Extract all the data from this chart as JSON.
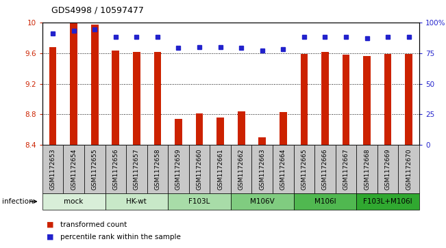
{
  "title": "GDS4998 / 10597477",
  "samples": [
    "GSM1172653",
    "GSM1172654",
    "GSM1172655",
    "GSM1172656",
    "GSM1172657",
    "GSM1172658",
    "GSM1172659",
    "GSM1172660",
    "GSM1172661",
    "GSM1172662",
    "GSM1172663",
    "GSM1172664",
    "GSM1172665",
    "GSM1172666",
    "GSM1172667",
    "GSM1172668",
    "GSM1172669",
    "GSM1172670"
  ],
  "bar_values": [
    9.68,
    10.0,
    9.97,
    9.63,
    9.61,
    9.61,
    8.74,
    8.81,
    8.76,
    8.84,
    8.5,
    8.83,
    9.59,
    9.61,
    9.58,
    9.56,
    9.59,
    9.59
  ],
  "percentile_values": [
    91,
    93,
    94,
    88,
    88,
    88,
    79,
    80,
    80,
    79,
    77,
    78,
    88,
    88,
    88,
    87,
    88,
    88
  ],
  "ylim_left": [
    8.4,
    10.0
  ],
  "ylim_right": [
    0,
    100
  ],
  "yticks_left": [
    8.4,
    8.8,
    9.2,
    9.6,
    10.0
  ],
  "yticks_right": [
    0,
    25,
    50,
    75,
    100
  ],
  "ytick_labels_left": [
    "8.4",
    "8.8",
    "9.2",
    "9.6",
    "10"
  ],
  "ytick_labels_right": [
    "0",
    "25",
    "50",
    "75",
    "100%"
  ],
  "bar_color": "#cc2200",
  "dot_color": "#2222cc",
  "groups": [
    {
      "label": "mock",
      "start": 0,
      "end": 2
    },
    {
      "label": "HK-wt",
      "start": 3,
      "end": 5
    },
    {
      "label": "F103L",
      "start": 6,
      "end": 8
    },
    {
      "label": "M106V",
      "start": 9,
      "end": 11
    },
    {
      "label": "M106I",
      "start": 12,
      "end": 14
    },
    {
      "label": "F103L+M106I",
      "start": 15,
      "end": 17
    }
  ],
  "group_colors": [
    "#d8eed8",
    "#c8e8c8",
    "#a8dca8",
    "#80cc80",
    "#50b850",
    "#30a830"
  ],
  "infection_label": "infection",
  "legend_bar_label": "transformed count",
  "legend_dot_label": "percentile rank within the sample",
  "sample_bg": "#c8c8c8"
}
